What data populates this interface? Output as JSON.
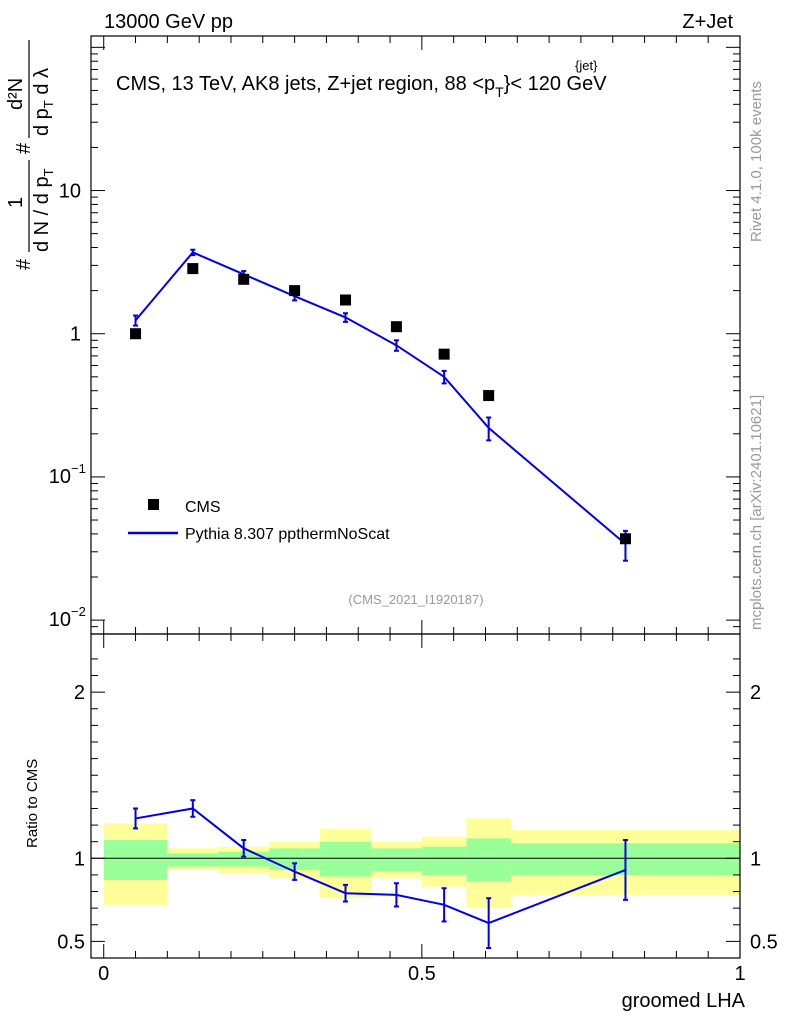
{
  "header": {
    "energy_label": "13000 GeV pp",
    "process_label": "Z+Jet"
  },
  "side_labels": {
    "rivet": "Rivet 4.1.0,  100k events",
    "mcplots": "mcplots.cern.ch [arXiv:2401.10621]"
  },
  "colors": {
    "mc_line": "#0000e6",
    "data_marker": "#000000",
    "band_inner": "#99ff99",
    "band_outer": "#ffff99",
    "watermark": "#999999"
  },
  "chart_data": [
    {
      "type": "scatter",
      "panel": "main",
      "title": "CMS, 13 TeV, AK8 jets, Z+jet region, 88 <p_T^{jet}> < 120 GeV",
      "title_parts": {
        "prefix": "CMS, 13 TeV, AK8 jets, Z+jet region, 88 <p",
        "sub": "T",
        "sup": "{jet}",
        "suffix": "}< 120 GeV"
      },
      "ylabel": "1/(dN/dpT) d²N/(dpT dλ)",
      "ylabel_parts": {
        "frac_num": "1",
        "frac_den": "d N / d p",
        "sub_T": "T",
        "num2": "d²N",
        "den2": "d p",
        "den2_tail": " d λ",
        "hash": "#"
      },
      "yscale": "log",
      "ylim": [
        0.008,
        120
      ],
      "xlim": [
        -0.02,
        1.0
      ],
      "y_ticks": [
        {
          "value": 0.01,
          "label": "10",
          "exp": "−2"
        },
        {
          "value": 0.1,
          "label": "10",
          "exp": "−1"
        },
        {
          "value": 1,
          "label": "1",
          "exp": ""
        },
        {
          "value": 10,
          "label": "10",
          "exp": ""
        }
      ],
      "watermark": "(CMS_2021_I1920187)",
      "legend": [
        {
          "label": "CMS",
          "kind": "marker"
        },
        {
          "label": "Pythia 8.307 ppthermNoScat",
          "kind": "line"
        }
      ],
      "series": [
        {
          "name": "CMS",
          "x": [
            0.05,
            0.14,
            0.22,
            0.3,
            0.38,
            0.46,
            0.535,
            0.605,
            0.82
          ],
          "y": [
            1.0,
            2.85,
            2.4,
            2.0,
            1.72,
            1.12,
            0.72,
            0.37,
            0.037
          ]
        },
        {
          "name": "Pythia 8.307 ppthermNoScat",
          "x": [
            0.05,
            0.14,
            0.22,
            0.3,
            0.38,
            0.46,
            0.535,
            0.605,
            0.82
          ],
          "y": [
            1.24,
            3.7,
            2.6,
            1.83,
            1.3,
            0.83,
            0.5,
            0.22,
            0.034
          ],
          "err": [
            0.1,
            0.16,
            0.14,
            0.12,
            0.09,
            0.07,
            0.05,
            0.04,
            0.008
          ]
        }
      ]
    },
    {
      "type": "line",
      "panel": "ratio",
      "xlabel": "groomed LHA",
      "ylabel": "Ratio to CMS",
      "ylim": [
        0.4,
        2.35
      ],
      "xlim": [
        -0.02,
        1.0
      ],
      "x_ticks": [
        {
          "value": 0,
          "label": "0"
        },
        {
          "value": 0.5,
          "label": "0.5"
        },
        {
          "value": 1,
          "label": "1"
        }
      ],
      "y_ticks": [
        {
          "value": 0.5,
          "label": "0.5"
        },
        {
          "value": 1,
          "label": "1"
        },
        {
          "value": 2,
          "label": "2"
        }
      ],
      "bands": [
        {
          "x0": 0.0,
          "x1": 0.1,
          "inner": [
            0.87,
            1.11
          ],
          "outer": [
            0.72,
            1.21
          ]
        },
        {
          "x0": 0.1,
          "x1": 0.18,
          "inner": [
            0.95,
            1.03
          ],
          "outer": [
            0.93,
            1.06
          ]
        },
        {
          "x0": 0.18,
          "x1": 0.26,
          "inner": [
            0.95,
            1.04
          ],
          "outer": [
            0.91,
            1.07
          ]
        },
        {
          "x0": 0.26,
          "x1": 0.34,
          "inner": [
            0.93,
            1.06
          ],
          "outer": [
            0.88,
            1.1
          ]
        },
        {
          "x0": 0.34,
          "x1": 0.42,
          "inner": [
            0.89,
            1.1
          ],
          "outer": [
            0.76,
            1.18
          ]
        },
        {
          "x0": 0.42,
          "x1": 0.5,
          "inner": [
            0.92,
            1.06
          ],
          "outer": [
            0.88,
            1.1
          ]
        },
        {
          "x0": 0.5,
          "x1": 0.57,
          "inner": [
            0.9,
            1.07
          ],
          "outer": [
            0.83,
            1.13
          ]
        },
        {
          "x0": 0.57,
          "x1": 0.64,
          "inner": [
            0.86,
            1.12
          ],
          "outer": [
            0.7,
            1.24
          ]
        },
        {
          "x0": 0.64,
          "x1": 1.0,
          "inner": [
            0.9,
            1.09
          ],
          "outer": [
            0.78,
            1.17
          ]
        }
      ],
      "series": [
        {
          "name": "Pythia 8.307 ppthermNoScat / CMS",
          "x": [
            0.05,
            0.14,
            0.22,
            0.3,
            0.38,
            0.46,
            0.535,
            0.605,
            0.82
          ],
          "y": [
            1.24,
            1.3,
            1.06,
            0.92,
            0.79,
            0.78,
            0.72,
            0.61,
            0.93
          ],
          "err": [
            0.06,
            0.05,
            0.05,
            0.05,
            0.05,
            0.07,
            0.1,
            0.15,
            0.18
          ]
        }
      ]
    }
  ]
}
